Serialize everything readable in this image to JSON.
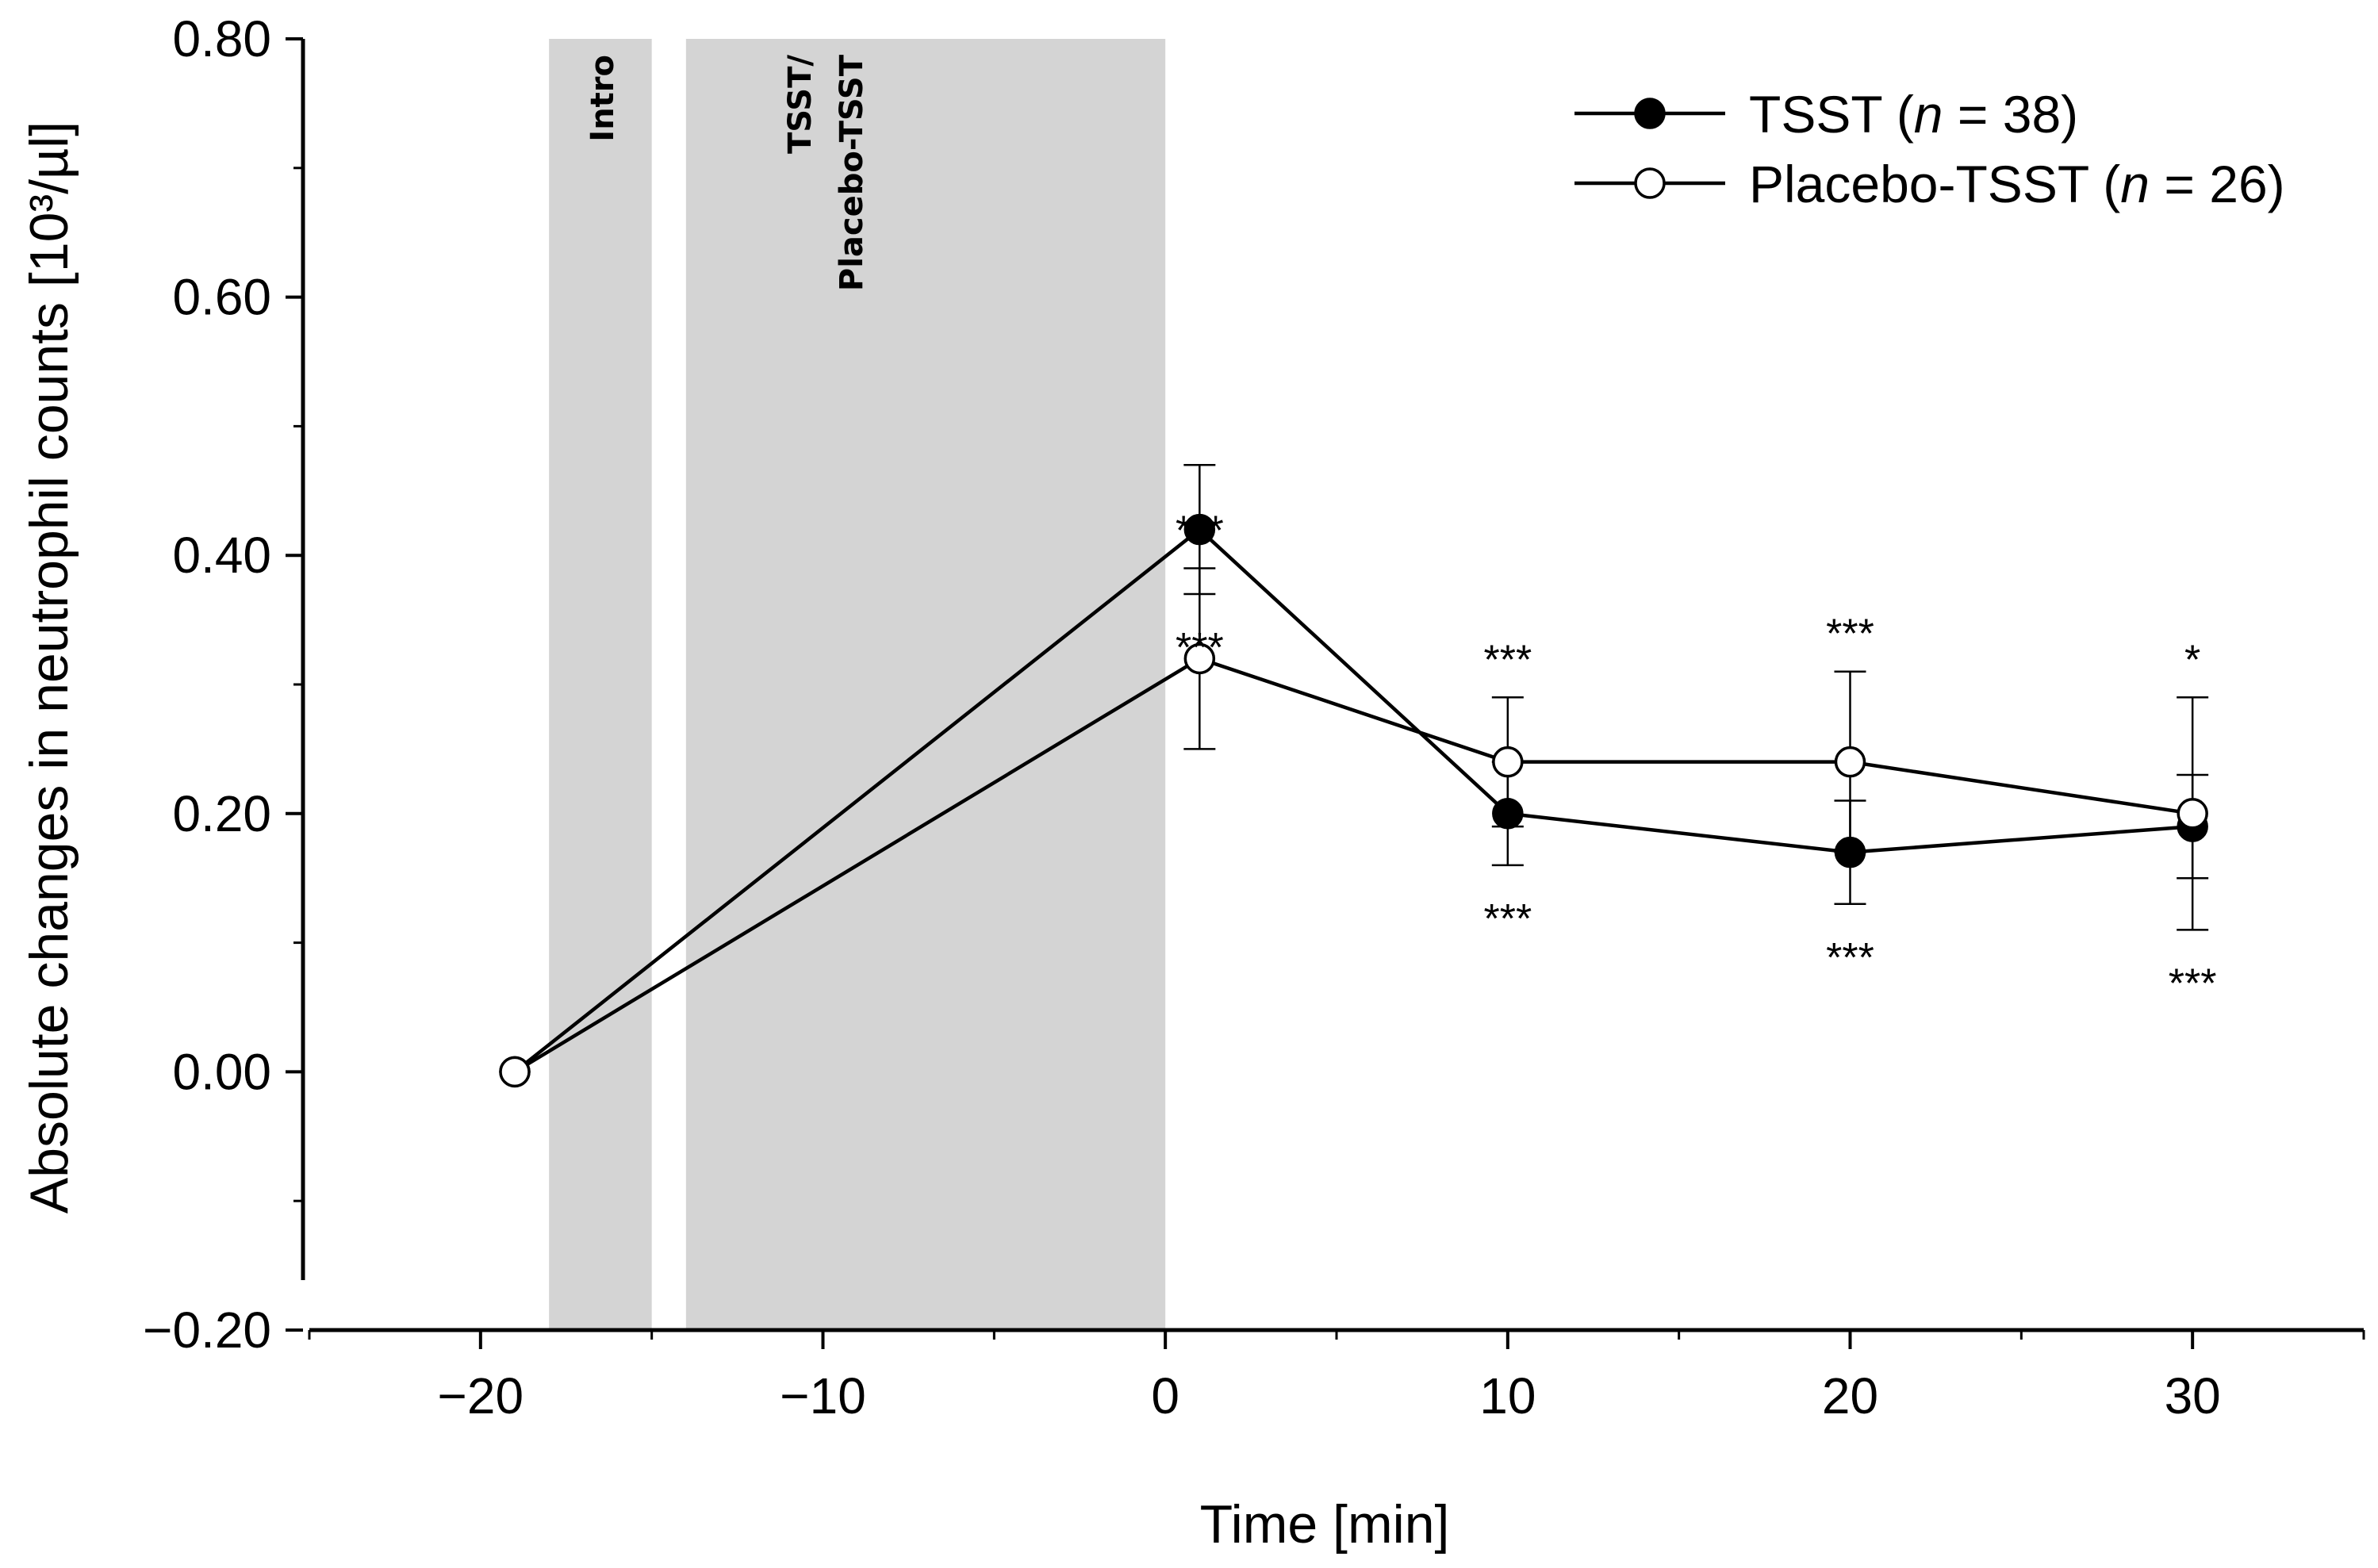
{
  "chart_data": {
    "type": "line",
    "xlabel": "Time [min]",
    "ylabel": "Absolute changes in neutrophil counts [10³/µl]",
    "xlim": [
      -25,
      35
    ],
    "ylim": [
      -0.2,
      0.8
    ],
    "x_ticks": [
      -20,
      -10,
      0,
      10,
      20,
      30
    ],
    "x_tick_labels": [
      "−20",
      "−10",
      "0",
      "10",
      "20",
      "30"
    ],
    "y_ticks": [
      -0.2,
      0.0,
      0.2,
      0.4,
      0.6,
      0.8
    ],
    "y_tick_labels": [
      "−0.20",
      "0.00",
      "0.20",
      "0.40",
      "0.60",
      "0.80"
    ],
    "grid": false,
    "legend_position": "top-right",
    "shaded_regions": [
      {
        "label": "Intro",
        "x_start": -18,
        "x_end": -15,
        "color": "#d4d4d4"
      },
      {
        "label_lines": [
          "TSST/",
          "Placebo-TSST"
        ],
        "x_start": -14,
        "x_end": 0,
        "color": "#d4d4d4"
      }
    ],
    "series": [
      {
        "name": "TSST",
        "n_label": "n",
        "n_value": "38",
        "marker": "filled-circle",
        "x": [
          -19,
          1,
          10,
          20,
          30
        ],
        "y": [
          0.0,
          0.42,
          0.2,
          0.17,
          0.19
        ],
        "err_low": [
          null,
          0.37,
          0.16,
          0.13,
          0.11
        ],
        "err_high": [
          null,
          0.47,
          0.24,
          0.21,
          0.23
        ],
        "significance": [
          "",
          "***",
          "***",
          "***",
          "***"
        ],
        "sig_position": "below"
      },
      {
        "name": "Placebo-TSST",
        "n_label": "n",
        "n_value": "26",
        "marker": "open-circle",
        "x": [
          -19,
          1,
          10,
          20,
          30
        ],
        "y": [
          0.0,
          0.32,
          0.24,
          0.24,
          0.2
        ],
        "err_low": [
          null,
          0.25,
          0.19,
          0.17,
          0.15
        ],
        "err_high": [
          null,
          0.39,
          0.29,
          0.31,
          0.29
        ],
        "significance": [
          "",
          "***",
          "***",
          "***",
          "*"
        ],
        "sig_position": "above"
      }
    ]
  }
}
